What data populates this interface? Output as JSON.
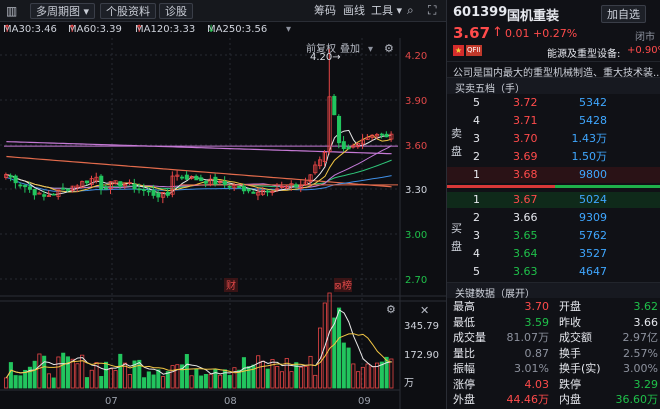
{
  "toolbar": {
    "period_label": "多周期图",
    "profile_label": "个股资料",
    "diagnose_label": "诊股",
    "chips_label": "筹码",
    "draw_label": "画线",
    "tools_label": "工具"
  },
  "ma_legend": [
    {
      "label": "MA30:3.46",
      "arrow": "↑",
      "color": "#2fc77a"
    },
    {
      "label": "MA60:3.39",
      "arrow": "↑",
      "color": "#3f8fe6"
    },
    {
      "label": "MA120:3.33",
      "arrow": "↑",
      "color": "#e36b4c"
    },
    {
      "label": "MA250:3.56",
      "arrow": "↓",
      "color": "#c67ad6"
    }
  ],
  "chart_controls": {
    "restore_label": "前复权",
    "overlay_label": "叠加"
  },
  "price_axis": [
    "4.20",
    "3.90",
    "3.60",
    "3.30",
    "3.00",
    "2.70"
  ],
  "high_marker": "4.20",
  "events": [
    {
      "label": "财",
      "color": "#e04848"
    },
    {
      "label": "榜",
      "color": "#e04848"
    }
  ],
  "volume_axis": [
    "345.79",
    "172.90",
    "万"
  ],
  "month_labels": [
    "07",
    "08",
    "09"
  ],
  "chart_data": {
    "type": "candlestick",
    "ylim": [
      2.6,
      4.3
    ],
    "ma_colors": {
      "ma5": "#e8e8e8",
      "ma10": "#f2c644",
      "ma20": "#c47ad8",
      "ma30": "#2fc77a",
      "ma60": "#3f8fe6",
      "ma120": "#e36b4c",
      "ma250": "#c67ad6"
    }
  },
  "stock": {
    "code": "601399",
    "name": "国机重装",
    "price": "3.67",
    "arrow": "↑",
    "change": "0.01",
    "pct": "+0.27%",
    "status": "闭市",
    "watch_label": "加自选",
    "tag": "QFII",
    "sector": "能源及重型设备:",
    "sector_pct": "+0.90%",
    "desc": "公司是国内最大的重型机械制造、重大技术装..."
  },
  "orderbook": {
    "title": "买卖五档（手）",
    "sell_label": "卖盘",
    "buy_label": "买盘",
    "asks": [
      {
        "level": "5",
        "price": "3.72",
        "vol": "5342"
      },
      {
        "level": "4",
        "price": "3.71",
        "vol": "5428"
      },
      {
        "level": "3",
        "price": "3.70",
        "vol": "1.43万"
      },
      {
        "level": "2",
        "price": "3.69",
        "vol": "1.50万"
      },
      {
        "level": "1",
        "price": "3.68",
        "vol": "9800"
      }
    ],
    "bids": [
      {
        "level": "1",
        "price": "3.67",
        "vol": "5024"
      },
      {
        "level": "2",
        "price": "3.66",
        "vol": "9309"
      },
      {
        "level": "3",
        "price": "3.65",
        "vol": "5762"
      },
      {
        "level": "4",
        "price": "3.64",
        "vol": "3527"
      },
      {
        "level": "5",
        "price": "3.63",
        "vol": "4647"
      }
    ]
  },
  "key_data": {
    "title": "关键数据（展开）",
    "rows": [
      {
        "l1": "最高",
        "v1": "3.70",
        "c1": "red",
        "l2": "开盘",
        "v2": "3.62",
        "c2": "green"
      },
      {
        "l1": "最低",
        "v1": "3.59",
        "c1": "green",
        "l2": "昨收",
        "v2": "3.66",
        "c2": "white"
      },
      {
        "l1": "成交量",
        "v1": "81.07万",
        "c1": "gray",
        "l2": "成交额",
        "v2": "2.97亿",
        "c2": "gray"
      },
      {
        "l1": "量比",
        "v1": "0.87",
        "c1": "gray",
        "l2": "换手",
        "v2": "2.57%",
        "c2": "gray"
      },
      {
        "l1": "振幅",
        "v1": "3.01%",
        "c1": "gray",
        "l2": "换手(实)",
        "v2": "3.00%",
        "c2": "gray"
      },
      {
        "l1": "涨停",
        "v1": "4.03",
        "c1": "red",
        "l2": "跌停",
        "v2": "3.29",
        "c2": "green"
      },
      {
        "l1": "外盘",
        "v1": "44.46万",
        "c1": "red",
        "l2": "内盘",
        "v2": "36.60万",
        "c2": "green"
      }
    ]
  }
}
